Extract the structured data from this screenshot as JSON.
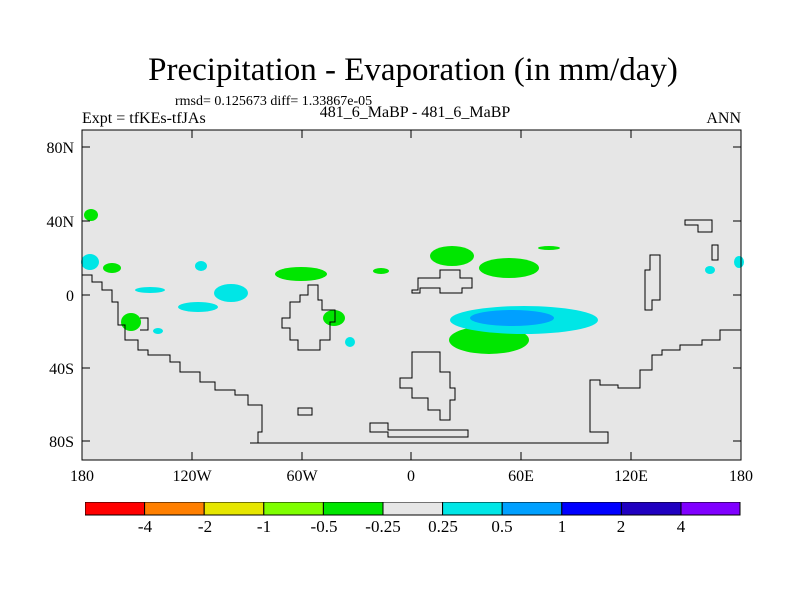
{
  "title": "Precipitation - Evaporation (in mm/day)",
  "stats_line": "rmsd= 0.125673 diff= 1.33867e-05",
  "expt_label": "Expt = tfKEs-tfJAs",
  "case_label": "481_6_MaBP - 481_6_MaBP",
  "season_label": "ANN",
  "colors": {
    "background_field": "#e6e6e6",
    "coast": "#000000"
  },
  "chart_data": {
    "type": "heatmap",
    "title": "Precipitation - Evaporation (in mm/day)",
    "x_ticks": [
      "180",
      "120W",
      "60W",
      "0",
      "60E",
      "120E",
      "180"
    ],
    "y_ticks": [
      "80N",
      "40N",
      "0",
      "40S",
      "80S"
    ],
    "xlim": [
      -180,
      180
    ],
    "ylim": [
      -90,
      90
    ],
    "colorbar": {
      "labels": [
        "-4",
        "-2",
        "-1",
        "-0.5",
        "-0.25",
        "0.25",
        "0.5",
        "1",
        "2",
        "4"
      ],
      "colors": [
        "#ff0000",
        "#ff7f00",
        "#e6e600",
        "#7fff00",
        "#00e600",
        "#e6e6e6",
        "#00e6e6",
        "#00a0ff",
        "#0000ff",
        "#2000c0",
        "#8000ff"
      ]
    },
    "regions": [
      {
        "level": "-0.5 to -0.25",
        "color": "#00e600",
        "lon": -170,
        "lat": 44
      },
      {
        "level": "-0.5 to -0.25",
        "color": "#00e600",
        "lon": -151,
        "lat": 15
      },
      {
        "level": "-0.5 to -0.25",
        "color": "#00e600",
        "lon": -91,
        "lat": 10
      },
      {
        "level": "-0.5 to -0.25",
        "color": "#00e600",
        "lon": -18,
        "lat": 27
      },
      {
        "level": "-0.5 to -0.25",
        "color": "#00e600",
        "lon": 52,
        "lat": 15
      },
      {
        "level": "-0.5 to -0.25",
        "color": "#00e600",
        "lon": 52,
        "lat": -25
      },
      {
        "level": "0.25 to 0.5",
        "color": "#00e6e6",
        "lon": 72,
        "lat": -14
      },
      {
        "level": "0.5 to 1",
        "color": "#00a0ff",
        "lon": 66,
        "lat": -13
      }
    ]
  }
}
